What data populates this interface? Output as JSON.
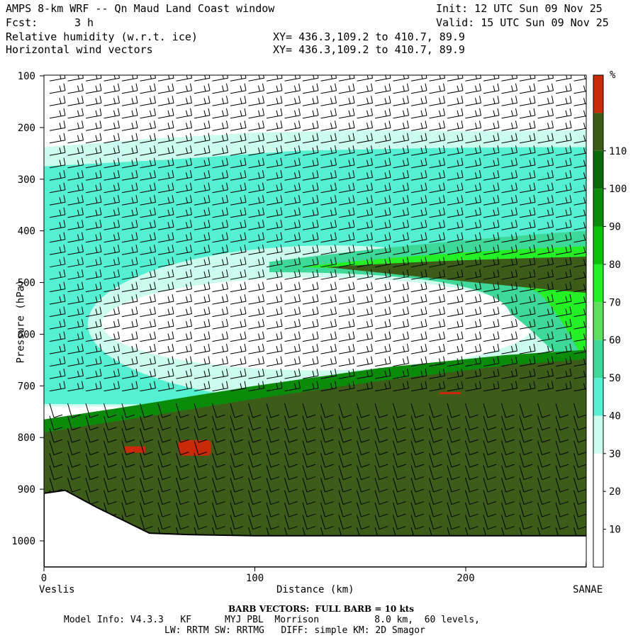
{
  "header": {
    "title_left": "AMPS 8-km WRF -- Qn Maud Land Coast window",
    "fcst_label": "Fcst:",
    "fcst_value": "3 h",
    "field1": "Relative humidity (w.r.t. ice)",
    "field2": "Horizontal wind vectors",
    "init": "Init: 12 UTC Sun 09 Nov 25",
    "valid": "Valid: 15 UTC Sun 09 Nov 25",
    "xy1": "XY= 436.3,109.2 to 410.7, 89.9",
    "xy2": "XY= 436.3,109.2 to 410.7, 89.9"
  },
  "footer": {
    "barb_note": "BARB VECTORS:  FULL BARB = 10 kts",
    "model_line1": "Model Info: V4.3.3   KF      MYJ PBL  Morrison          8.0 km,  60 levels,",
    "model_line2": "LW: RRTM SW: RRTMG   DIFF: simple KM: 2D Smagor"
  },
  "chart_data": {
    "type": "heatmap",
    "title": "Relative humidity (w.r.t. ice)",
    "xlabel": "Distance (km)",
    "ylabel": "Pressure (hPa)",
    "x_start_label": "Veslis",
    "x_end_label": "SANAE",
    "xlim": [
      0,
      258
    ],
    "ylim": [
      1050,
      100
    ],
    "x_ticks": [
      "0",
      "100",
      "200"
    ],
    "y_ticks": [
      "100",
      "200",
      "300",
      "400",
      "500",
      "600",
      "700",
      "800",
      "900",
      "1000"
    ],
    "colorbar": {
      "unit": "%",
      "levels": [
        "10",
        "20",
        "30",
        "40",
        "50",
        "60",
        "70",
        "80",
        "90",
        "100",
        "110"
      ],
      "colors": [
        "#ffffff",
        "#ffffff",
        "#ffffff",
        "#ccfced",
        "#55f0d2",
        "#3ed898",
        "#5ee05e",
        "#25f025",
        "#09c209",
        "#0a8c0a",
        "#0a6a0a",
        "#3d5c1a",
        "#c82a0a"
      ]
    },
    "bands": [
      {
        "level": "30-40",
        "color": "#ccfced",
        "top": [
          [
            0,
            238
          ],
          [
            50,
            222
          ],
          [
            100,
            210
          ],
          [
            150,
            205
          ],
          [
            200,
            207
          ],
          [
            258,
            205
          ]
        ],
        "bottom": [
          [
            0,
            740
          ],
          [
            50,
            740
          ],
          [
            100,
            745
          ],
          [
            150,
            745
          ],
          [
            200,
            748
          ],
          [
            258,
            748
          ]
        ]
      },
      {
        "level": "40-50",
        "color": "#55f0d2",
        "top": [
          [
            0,
            275
          ],
          [
            60,
            262
          ],
          [
            120,
            245
          ],
          [
            180,
            240
          ],
          [
            230,
            238
          ],
          [
            258,
            238
          ]
        ],
        "bottom": [
          [
            0,
            735
          ],
          [
            258,
            740
          ]
        ]
      },
      {
        "level": "90-100",
        "color": "#0a8c0a",
        "top": [
          [
            0,
            765
          ],
          [
            40,
            740
          ],
          [
            100,
            700
          ],
          [
            160,
            665
          ],
          [
            220,
            640
          ],
          [
            258,
            630
          ]
        ],
        "bottom": [
          [
            0,
            1000
          ],
          [
            258,
            1000
          ]
        ]
      },
      {
        "level": "100-110",
        "color": "#3d5c1a",
        "top": [
          [
            0,
            790
          ],
          [
            40,
            765
          ],
          [
            100,
            725
          ],
          [
            160,
            690
          ],
          [
            220,
            660
          ],
          [
            258,
            648
          ]
        ],
        "bottom": [
          [
            0,
            1000
          ],
          [
            258,
            1000
          ]
        ]
      }
    ],
    "dry_core": {
      "level": "<30",
      "center_x": 130,
      "center_p": 580,
      "x_extent": [
        30,
        235
      ],
      "p_extent": [
        520,
        700
      ]
    },
    "saturated_pockets_pressure": [
      815,
      820,
      712
    ],
    "terrain_surface": [
      [
        0,
        908
      ],
      [
        10,
        902
      ],
      [
        25,
        935
      ],
      [
        40,
        965
      ],
      [
        50,
        985
      ],
      [
        70,
        988
      ],
      [
        100,
        990
      ],
      [
        150,
        990
      ],
      [
        200,
        990
      ],
      [
        258,
        990
      ]
    ]
  }
}
